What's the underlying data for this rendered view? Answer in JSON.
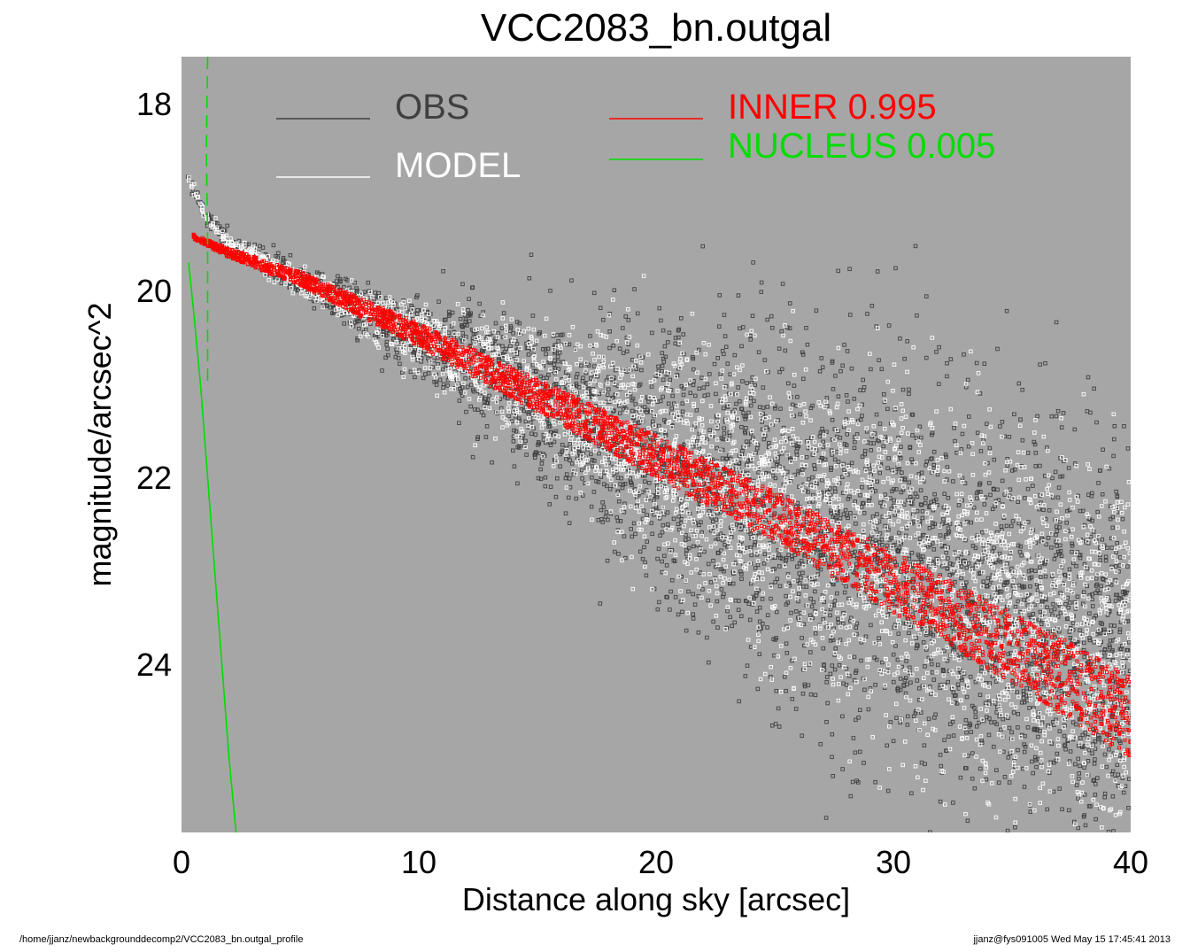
{
  "footer": {
    "left": "/home/jjanz/newbackgrounddecomp2/VCC2083_bn.outgal_profile",
    "right": "jjanz@fys091005  Wed May 15 17:45:41 2013"
  },
  "colors": {
    "plot_background": "#a6a6a6",
    "obs": "#404040",
    "model": "#ffffff",
    "inner": "#ff0000",
    "nucleus": "#00dd00"
  },
  "chart_data": {
    "type": "scatter",
    "title": "VCC2083_bn.outgal",
    "xlabel": "Distance along sky [arcsec]",
    "ylabel": "magnitude/arcsec^2",
    "xlim": [
      0,
      40
    ],
    "ylim": [
      25.8,
      17.5
    ],
    "y_inverted": true,
    "xticks": [
      0,
      10,
      20,
      30,
      40
    ],
    "yticks": [
      18,
      20,
      22,
      24
    ],
    "grid": false,
    "legend_placement": "top",
    "legend": [
      {
        "label": "OBS",
        "color": "#404040"
      },
      {
        "label": "MODEL",
        "color": "#ffffff"
      },
      {
        "label": "INNER",
        "value": "0.995",
        "color": "#ff0000"
      },
      {
        "label": "NUCLEUS",
        "value": "0.005",
        "color": "#00dd00"
      }
    ],
    "series": [
      {
        "name": "OBS",
        "kind": "scatter",
        "description_points": [
          [
            0.3,
            18.8
          ],
          [
            1.0,
            19.2
          ],
          [
            2.0,
            19.5
          ],
          [
            5.0,
            19.9
          ],
          [
            10.0,
            20.5
          ],
          [
            15.0,
            21.1
          ],
          [
            20.0,
            21.7
          ],
          [
            25.0,
            22.3
          ],
          [
            30.0,
            22.9
          ],
          [
            35.0,
            23.5
          ],
          [
            40.0,
            24.0
          ]
        ],
        "scatter_mag": [
          [
            0,
            0.05
          ],
          [
            5,
            0.15
          ],
          [
            10,
            0.4
          ],
          [
            15,
            0.8
          ],
          [
            20,
            1.3
          ],
          [
            25,
            1.7
          ],
          [
            30,
            1.9
          ],
          [
            40,
            2.0
          ]
        ]
      },
      {
        "name": "MODEL",
        "kind": "scatter",
        "description_points": [
          [
            0.3,
            18.8
          ],
          [
            1.0,
            19.2
          ],
          [
            2.0,
            19.5
          ],
          [
            5.0,
            19.9
          ],
          [
            10.0,
            20.5
          ],
          [
            15.0,
            21.1
          ],
          [
            20.0,
            21.7
          ],
          [
            25.0,
            22.3
          ],
          [
            30.0,
            22.9
          ],
          [
            35.0,
            23.5
          ],
          [
            40.0,
            24.0
          ]
        ],
        "scatter_mag": [
          [
            0,
            0.05
          ],
          [
            5,
            0.12
          ],
          [
            10,
            0.3
          ],
          [
            15,
            0.6
          ],
          [
            20,
            1.0
          ],
          [
            25,
            1.4
          ],
          [
            30,
            1.6
          ],
          [
            40,
            1.7
          ]
        ]
      },
      {
        "name": "INNER",
        "kind": "band",
        "upper": [
          [
            0.5,
            19.4
          ],
          [
            2.0,
            19.55
          ],
          [
            5.0,
            19.8
          ],
          [
            10.0,
            20.35
          ],
          [
            15.0,
            20.95
          ],
          [
            20.0,
            21.55
          ],
          [
            25.0,
            22.15
          ],
          [
            30.0,
            22.8
          ],
          [
            35.0,
            23.45
          ],
          [
            40.0,
            24.1
          ]
        ],
        "lower": [
          [
            0.5,
            19.45
          ],
          [
            2.0,
            19.65
          ],
          [
            5.0,
            19.95
          ],
          [
            10.0,
            20.6
          ],
          [
            15.0,
            21.3
          ],
          [
            20.0,
            22.0
          ],
          [
            25.0,
            22.7
          ],
          [
            30.0,
            23.45
          ],
          [
            35.0,
            24.2
          ],
          [
            40.0,
            25.0
          ]
        ]
      },
      {
        "name": "NUCLEUS",
        "kind": "line",
        "points": [
          [
            0.3,
            19.7
          ],
          [
            0.5,
            20.2
          ],
          [
            0.8,
            21.0
          ],
          [
            1.1,
            22.0
          ],
          [
            1.4,
            23.0
          ],
          [
            1.7,
            24.0
          ],
          [
            2.0,
            25.0
          ],
          [
            2.3,
            25.8
          ]
        ]
      },
      {
        "name": "NUCLEUS",
        "kind": "dashed-line",
        "points": [
          [
            1.1,
            17.5
          ],
          [
            1.05,
            18.5
          ],
          [
            1.1,
            19.5
          ],
          [
            1.1,
            21.0
          ]
        ]
      }
    ]
  }
}
